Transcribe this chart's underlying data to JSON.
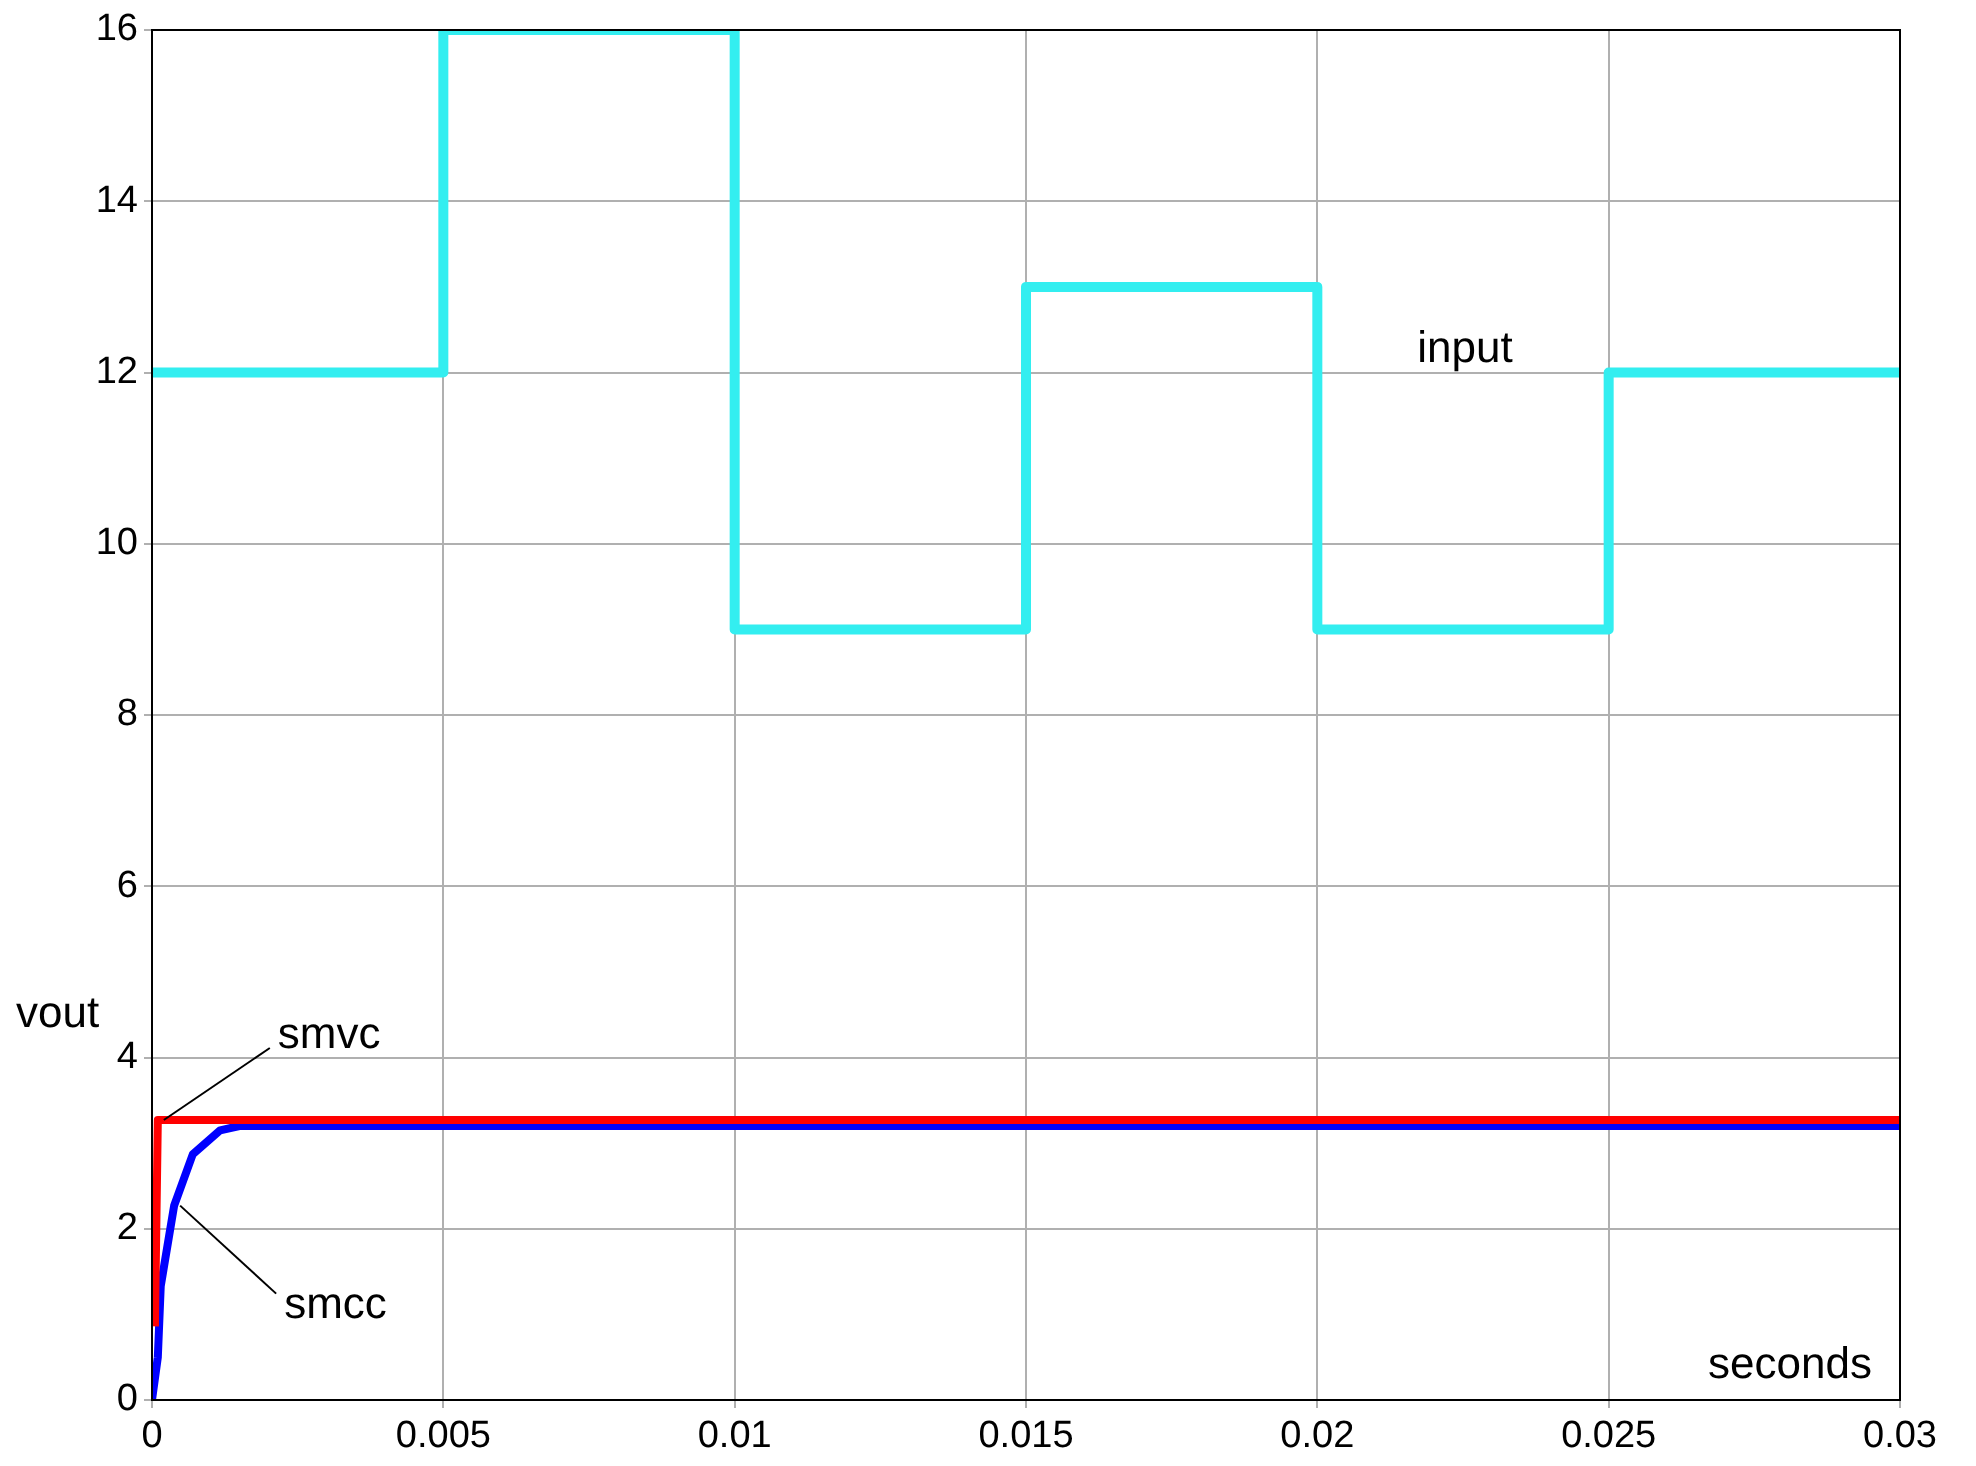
{
  "chart_data": {
    "type": "step",
    "xlabel": "seconds",
    "ylabel": "vout",
    "xlim": [
      0,
      0.03
    ],
    "xticks": [
      0,
      0.005,
      0.01,
      0.015,
      0.02,
      0.025,
      0.03
    ],
    "ylim": [
      0,
      16
    ],
    "yticks": [
      0,
      2,
      4,
      6,
      8,
      10,
      12,
      14,
      16
    ],
    "grid": true,
    "legend": false,
    "marker": "none",
    "line_style": "solid",
    "series": [
      {
        "type": "step",
        "name": "input",
        "color": "#33eef0",
        "x": [
          0,
          0.005,
          0.01,
          0.015,
          0.02,
          0.025,
          0.03
        ],
        "values": [
          12,
          16,
          9,
          13,
          9,
          12,
          12
        ]
      },
      {
        "type": "line",
        "name": "smvc",
        "color": "#ff0000",
        "x": [
          5e-05,
          0.0001,
          0.03
        ],
        "values": [
          0.86,
          3.27,
          3.27
        ]
      },
      {
        "type": "line",
        "name": "smcc",
        "color": "#0000ff",
        "x": [
          0,
          0.0001,
          0.00015,
          0.00038,
          0.0007,
          0.00117,
          0.0015,
          0.03
        ],
        "values": [
          0,
          0.5,
          1.33,
          2.27,
          2.87,
          3.15,
          3.2,
          3.2
        ]
      }
    ]
  }
}
